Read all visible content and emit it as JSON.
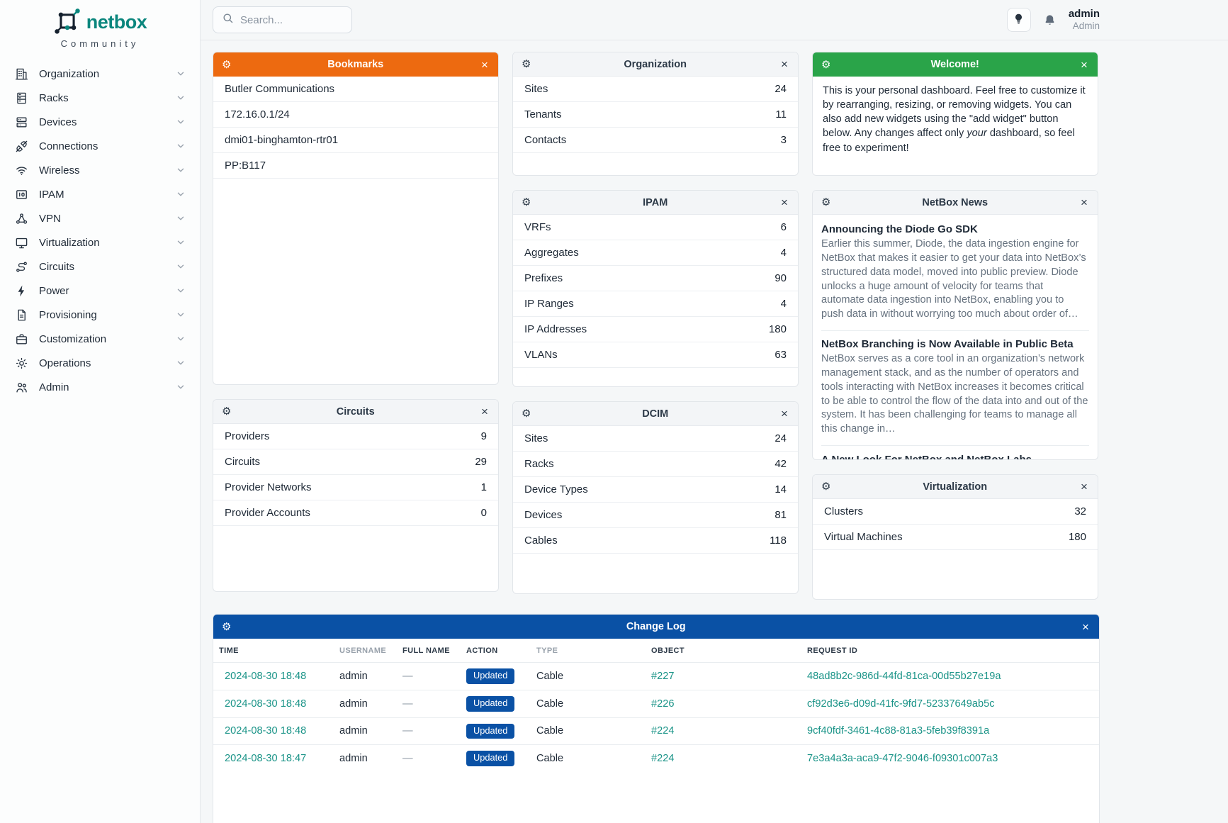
{
  "colors": {
    "brand_teal": "#0b867d",
    "bookmarks_header": "#ed6a10",
    "welcome_header": "#2aa449",
    "changelog_header": "#0a51a5",
    "action_badge": "#0a51a5",
    "link": "#1b9488"
  },
  "brand": {
    "name": "netbox",
    "subtitle": "Community"
  },
  "topbar": {
    "search_placeholder": "Search...",
    "user_name": "admin",
    "user_role": "Admin"
  },
  "sidebar": {
    "items": [
      {
        "label": "Organization",
        "icon": "building"
      },
      {
        "label": "Racks",
        "icon": "rack"
      },
      {
        "label": "Devices",
        "icon": "server"
      },
      {
        "label": "Connections",
        "icon": "plug"
      },
      {
        "label": "Wireless",
        "icon": "wifi"
      },
      {
        "label": "IPAM",
        "icon": "binary"
      },
      {
        "label": "VPN",
        "icon": "network"
      },
      {
        "label": "Virtualization",
        "icon": "monitor"
      },
      {
        "label": "Circuits",
        "icon": "route"
      },
      {
        "label": "Power",
        "icon": "bolt"
      },
      {
        "label": "Provisioning",
        "icon": "file"
      },
      {
        "label": "Customization",
        "icon": "briefcase"
      },
      {
        "label": "Operations",
        "icon": "gears"
      },
      {
        "label": "Admin",
        "icon": "users"
      }
    ]
  },
  "widgets": {
    "bookmarks": {
      "title": "Bookmarks",
      "items": [
        {
          "label": "Butler Communications"
        },
        {
          "label": "172.16.0.1/24"
        },
        {
          "label": "dmi01-binghamton-rtr01"
        },
        {
          "label": "PP:B117"
        }
      ]
    },
    "organization": {
      "title": "Organization",
      "rows": [
        {
          "label": "Sites",
          "value": "24"
        },
        {
          "label": "Tenants",
          "value": "11"
        },
        {
          "label": "Contacts",
          "value": "3"
        }
      ]
    },
    "welcome": {
      "title": "Welcome!",
      "text1": "This is your personal dashboard. Feel free to customize it by rearranging, resizing, or removing widgets. You can also add new widgets using the \"add widget\" button below. Any changes affect only ",
      "italic": "your",
      "text2": " dashboard, so feel free to experiment!"
    },
    "ipam": {
      "title": "IPAM",
      "rows": [
        {
          "label": "VRFs",
          "value": "6"
        },
        {
          "label": "Aggregates",
          "value": "4"
        },
        {
          "label": "Prefixes",
          "value": "90"
        },
        {
          "label": "IP Ranges",
          "value": "4"
        },
        {
          "label": "IP Addresses",
          "value": "180"
        },
        {
          "label": "VLANs",
          "value": "63"
        }
      ]
    },
    "news": {
      "title": "NetBox News",
      "articles": [
        {
          "headline": "Announcing the Diode Go SDK",
          "excerpt": "Earlier this summer, Diode, the data ingestion engine for NetBox that makes it easier to get your data into NetBox’s structured data model, moved into public preview. Diode unlocks a huge amount of velocity for teams that automate data ingestion into NetBox, enabling you to push data in without worrying too much about order of…"
        },
        {
          "headline": "NetBox Branching is Now Available in Public Beta",
          "excerpt": "NetBox serves as a core tool in an organization’s network management stack, and as the number of operators and tools interacting with NetBox increases it becomes critical to be able to control the flow of the data into and out of the system. It has been challenging for teams to manage all this change in…"
        }
      ],
      "footer_headline": "A New Look For NetBox and NetBox Labs"
    },
    "circuits": {
      "title": "Circuits",
      "rows": [
        {
          "label": "Providers",
          "value": "9"
        },
        {
          "label": "Circuits",
          "value": "29"
        },
        {
          "label": "Provider Networks",
          "value": "1"
        },
        {
          "label": "Provider Accounts",
          "value": "0"
        }
      ]
    },
    "dcim": {
      "title": "DCIM",
      "rows": [
        {
          "label": "Sites",
          "value": "24"
        },
        {
          "label": "Racks",
          "value": "42"
        },
        {
          "label": "Device Types",
          "value": "14"
        },
        {
          "label": "Devices",
          "value": "81"
        },
        {
          "label": "Cables",
          "value": "118"
        }
      ]
    },
    "virtualization": {
      "title": "Virtualization",
      "rows": [
        {
          "label": "Clusters",
          "value": "32"
        },
        {
          "label": "Virtual Machines",
          "value": "180"
        }
      ]
    }
  },
  "changelog": {
    "title": "Change Log",
    "columns": [
      "TIME",
      "USERNAME",
      "FULL NAME",
      "ACTION",
      "TYPE",
      "OBJECT",
      "REQUEST ID"
    ],
    "rows": [
      {
        "time": "2024-08-30 18:48",
        "username": "admin",
        "full_name": "—",
        "action": "Updated",
        "type": "Cable",
        "object": "#227",
        "request_id": "48ad8b2c-986d-44fd-81ca-00d55b27e19a"
      },
      {
        "time": "2024-08-30 18:48",
        "username": "admin",
        "full_name": "—",
        "action": "Updated",
        "type": "Cable",
        "object": "#226",
        "request_id": "cf92d3e6-d09d-41fc-9fd7-52337649ab5c"
      },
      {
        "time": "2024-08-30 18:48",
        "username": "admin",
        "full_name": "—",
        "action": "Updated",
        "type": "Cable",
        "object": "#224",
        "request_id": "9cf40fdf-3461-4c88-81a3-5feb39f8391a"
      },
      {
        "time": "2024-08-30 18:47",
        "username": "admin",
        "full_name": "—",
        "action": "Updated",
        "type": "Cable",
        "object": "#224",
        "request_id": "7e3a4a3a-aca9-47f2-9046-f09301c007a3"
      }
    ]
  }
}
